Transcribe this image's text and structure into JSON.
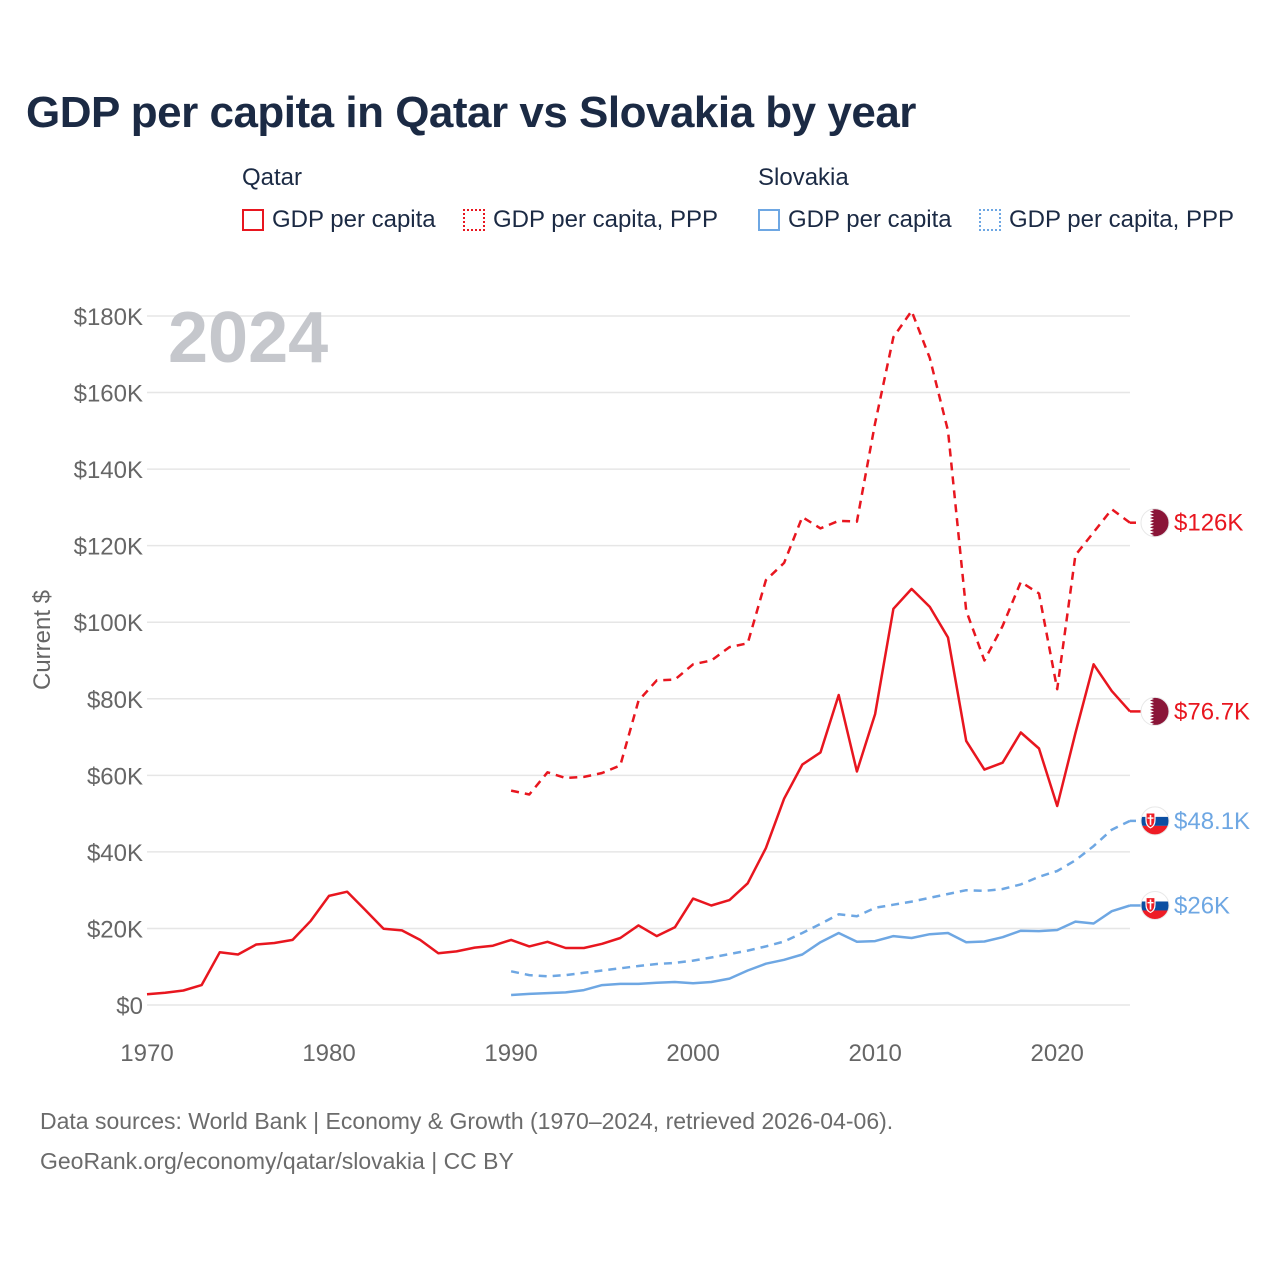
{
  "title": "GDP per capita in Qatar vs Slovakia by year",
  "watermark_year": "2024",
  "legend": {
    "groups": [
      {
        "name": "Qatar",
        "items": [
          {
            "label": "GDP per capita",
            "color": "#e8161f",
            "style": "solid"
          },
          {
            "label": "GDP per capita, PPP",
            "color": "#e8161f",
            "style": "dotted"
          }
        ]
      },
      {
        "name": "Slovakia",
        "items": [
          {
            "label": "GDP per capita",
            "color": "#6ea7e3",
            "style": "solid"
          },
          {
            "label": "GDP per capita, PPP",
            "color": "#6ea7e3",
            "style": "dotted"
          }
        ]
      }
    ]
  },
  "footer": {
    "line1": "Data sources: World Bank | Economy & Growth (1970–2024, retrieved 2026-04-06).",
    "line2": "GeoRank.org/economy/qatar/slovakia | CC BY"
  },
  "colors": {
    "qatar": "#e8161f",
    "slovakia": "#6ea7e3",
    "grid": "#e6e6e6",
    "axis_text": "#666666",
    "watermark": "#c5c7cc"
  },
  "chart_data": {
    "type": "line",
    "title": "GDP per capita in Qatar vs Slovakia by year",
    "xlabel": "",
    "ylabel": "Current $",
    "xlim": [
      1970,
      2024
    ],
    "ylim": [
      0,
      180000
    ],
    "x_ticks": [
      1970,
      1980,
      1990,
      2000,
      2010,
      2020
    ],
    "x_tick_labels": [
      "1970",
      "1980",
      "1990",
      "2000",
      "2010",
      "2020"
    ],
    "y_ticks": [
      0,
      20000,
      40000,
      60000,
      80000,
      100000,
      120000,
      140000,
      160000,
      180000
    ],
    "y_tick_labels": [
      "$0",
      "$20K",
      "$40K",
      "$60K",
      "$80K",
      "$100K",
      "$120K",
      "$140K",
      "$160K",
      "$180K"
    ],
    "grid": true,
    "series": [
      {
        "name": "Qatar GDP per capita",
        "country": "Qatar",
        "metric": "GDP per capita",
        "style": "solid",
        "color": "#e8161f",
        "end_label": "$76.7K",
        "end_value": 76700,
        "flag": "qatar-flag",
        "x": [
          1970,
          1971,
          1972,
          1973,
          1974,
          1975,
          1976,
          1977,
          1978,
          1979,
          1980,
          1981,
          1982,
          1983,
          1984,
          1985,
          1986,
          1987,
          1988,
          1989,
          1990,
          1991,
          1992,
          1993,
          1994,
          1995,
          1996,
          1997,
          1998,
          1999,
          2000,
          2001,
          2002,
          2003,
          2004,
          2005,
          2006,
          2007,
          2008,
          2009,
          2010,
          2011,
          2012,
          2013,
          2014,
          2015,
          2016,
          2017,
          2018,
          2019,
          2020,
          2021,
          2022,
          2023,
          2024
        ],
        "values": [
          2800,
          3200,
          3800,
          5200,
          13800,
          13200,
          15800,
          16200,
          17000,
          22000,
          28500,
          29600,
          24800,
          19900,
          19500,
          17000,
          13500,
          14000,
          15000,
          15500,
          17000,
          15300,
          16500,
          14900,
          14900,
          16000,
          17500,
          20800,
          18000,
          20300,
          27800,
          26000,
          27400,
          31800,
          41000,
          53900,
          62800,
          66000,
          81000,
          61000,
          76000,
          103500,
          108700,
          104000,
          96000,
          69000,
          61500,
          63300,
          71200,
          67000,
          52000,
          71000,
          89000,
          82000,
          76700
        ]
      },
      {
        "name": "Qatar GDP per capita, PPP",
        "country": "Qatar",
        "metric": "GDP per capita, PPP",
        "style": "dotted",
        "color": "#e8161f",
        "end_label": "$126K",
        "end_value": 126000,
        "flag": "qatar-flag",
        "x": [
          1990,
          1991,
          1992,
          1993,
          1994,
          1995,
          1996,
          1997,
          1998,
          1999,
          2000,
          2001,
          2002,
          2003,
          2004,
          2005,
          2006,
          2007,
          2008,
          2009,
          2010,
          2011,
          2012,
          2013,
          2014,
          2015,
          2016,
          2017,
          2018,
          2019,
          2020,
          2021,
          2022,
          2023,
          2024
        ],
        "values": [
          56000,
          55000,
          60800,
          59300,
          59600,
          60600,
          62600,
          79500,
          84800,
          85000,
          89000,
          90000,
          93500,
          94500,
          111000,
          115500,
          127500,
          124500,
          126500,
          126300,
          152000,
          174500,
          181300,
          169000,
          150000,
          103000,
          90000,
          99000,
          110500,
          107500,
          82500,
          117500,
          123500,
          129500,
          126000
        ]
      },
      {
        "name": "Slovakia GDP per capita",
        "country": "Slovakia",
        "metric": "GDP per capita",
        "style": "solid",
        "color": "#6ea7e3",
        "end_label": "$26K",
        "end_value": 26000,
        "flag": "slovakia-flag",
        "x": [
          1990,
          1991,
          1992,
          1993,
          1994,
          1995,
          1996,
          1997,
          1998,
          1999,
          2000,
          2001,
          2002,
          2003,
          2004,
          2005,
          2006,
          2007,
          2008,
          2009,
          2010,
          2011,
          2012,
          2013,
          2014,
          2015,
          2016,
          2017,
          2018,
          2019,
          2020,
          2021,
          2022,
          2023,
          2024
        ],
        "values": [
          2600,
          2900,
          3100,
          3300,
          3900,
          5200,
          5500,
          5500,
          5800,
          6000,
          5700,
          6000,
          6900,
          9000,
          10800,
          11800,
          13200,
          16400,
          18800,
          16500,
          16700,
          18000,
          17500,
          18500,
          18800,
          16400,
          16600,
          17700,
          19400,
          19300,
          19600,
          21800,
          21300,
          24500,
          26000
        ]
      },
      {
        "name": "Slovakia GDP per capita, PPP",
        "country": "Slovakia",
        "metric": "GDP per capita, PPP",
        "style": "dotted",
        "color": "#6ea7e3",
        "end_label": "$48.1K",
        "end_value": 48100,
        "flag": "slovakia-flag",
        "x": [
          1990,
          1991,
          1992,
          1993,
          1994,
          1995,
          1996,
          1997,
          1998,
          1999,
          2000,
          2001,
          2002,
          2003,
          2004,
          2005,
          2006,
          2007,
          2008,
          2009,
          2010,
          2011,
          2012,
          2013,
          2014,
          2015,
          2016,
          2017,
          2018,
          2019,
          2020,
          2021,
          2022,
          2023,
          2024
        ],
        "values": [
          8800,
          7800,
          7500,
          7800,
          8400,
          9000,
          9600,
          10200,
          10700,
          11000,
          11600,
          12400,
          13300,
          14200,
          15300,
          16600,
          18800,
          21200,
          23700,
          23200,
          25400,
          26200,
          27000,
          28000,
          29000,
          30000,
          29800,
          30300,
          31500,
          33500,
          35000,
          37800,
          41500,
          45800,
          48100
        ]
      }
    ]
  }
}
